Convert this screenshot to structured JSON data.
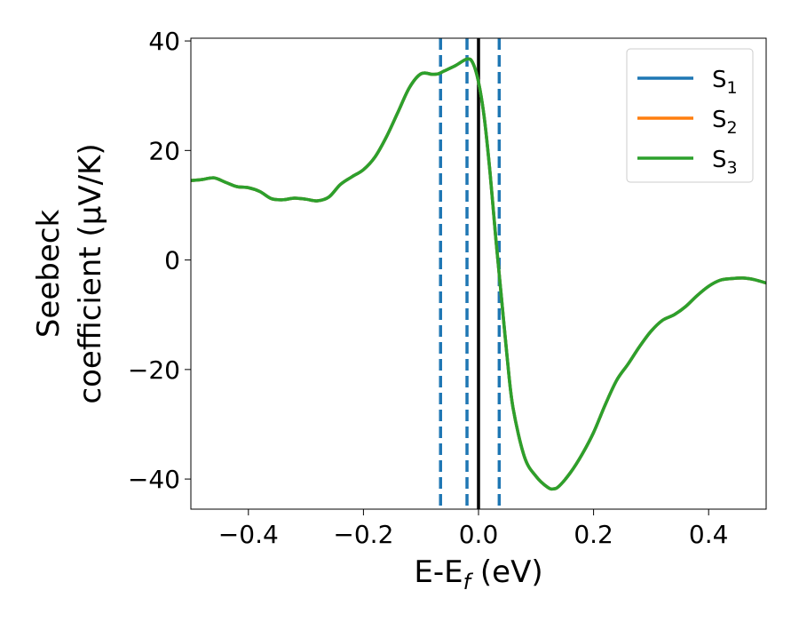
{
  "chart_data": {
    "type": "line",
    "title": "",
    "xlabel": {
      "main": "E-E",
      "sub": "f",
      "unit": " (eV)"
    },
    "ylabel": {
      "line1": "Seebeck",
      "line2": "coefficient  (μV/K)"
    },
    "xlim": [
      -0.5,
      0.5
    ],
    "ylim": [
      -45.5,
      40.5
    ],
    "xticks": [
      -0.4,
      -0.2,
      0.0,
      0.2,
      0.4
    ],
    "xtick_labels": [
      "−0.4",
      "−0.2",
      "0.0",
      "0.2",
      "0.4"
    ],
    "yticks": [
      -40,
      -20,
      0,
      20,
      40
    ],
    "ytick_labels": [
      "−40",
      "−20",
      "0",
      "20",
      "40"
    ],
    "grid": false,
    "legend": {
      "placement": "top-right",
      "entries": [
        {
          "label": "S",
          "sub": "1",
          "color": "#1f77b4"
        },
        {
          "label": "S",
          "sub": "2",
          "color": "#ff7f0e"
        },
        {
          "label": "S",
          "sub": "3",
          "color": "#2ca02c"
        }
      ]
    },
    "series": [
      {
        "name": "S1",
        "color": "#1f77b4",
        "x": [
          -0.5,
          -0.48,
          -0.46,
          -0.44,
          -0.42,
          -0.4,
          -0.38,
          -0.36,
          -0.34,
          -0.32,
          -0.3,
          -0.28,
          -0.26,
          -0.24,
          -0.22,
          -0.2,
          -0.18,
          -0.16,
          -0.14,
          -0.12,
          -0.1,
          -0.08,
          -0.07,
          -0.06,
          -0.04,
          -0.02,
          -0.01,
          0.0,
          0.01,
          0.02,
          0.03,
          0.04,
          0.05,
          0.06,
          0.08,
          0.1,
          0.12,
          0.13,
          0.14,
          0.16,
          0.18,
          0.2,
          0.22,
          0.24,
          0.26,
          0.28,
          0.3,
          0.32,
          0.34,
          0.36,
          0.38,
          0.4,
          0.42,
          0.44,
          0.46,
          0.48,
          0.5
        ],
        "y": [
          14.5,
          14.7,
          15.0,
          14.2,
          13.4,
          13.2,
          12.5,
          11.2,
          11.0,
          11.3,
          11.1,
          10.8,
          11.5,
          13.8,
          15.2,
          16.5,
          18.8,
          22.5,
          27.0,
          31.5,
          34.0,
          33.9,
          34.0,
          34.5,
          35.5,
          36.7,
          36.0,
          32.5,
          26.0,
          16.0,
          4.0,
          -7.0,
          -18.0,
          -27.0,
          -36.0,
          -39.5,
          -41.5,
          -41.8,
          -41.3,
          -38.8,
          -35.5,
          -31.5,
          -26.5,
          -22.0,
          -19.0,
          -15.8,
          -13.0,
          -11.0,
          -10.0,
          -8.5,
          -6.5,
          -4.8,
          -3.7,
          -3.4,
          -3.3,
          -3.6,
          -4.2
        ]
      },
      {
        "name": "S2",
        "color": "#ff7f0e",
        "x": [
          -0.5,
          -0.48,
          -0.46,
          -0.44,
          -0.42,
          -0.4,
          -0.38,
          -0.36,
          -0.34,
          -0.32,
          -0.3,
          -0.28,
          -0.26,
          -0.24,
          -0.22,
          -0.2,
          -0.18,
          -0.16,
          -0.14,
          -0.12,
          -0.1,
          -0.08,
          -0.07,
          -0.06,
          -0.04,
          -0.02,
          -0.01,
          0.0,
          0.01,
          0.02,
          0.03,
          0.04,
          0.05,
          0.06,
          0.08,
          0.1,
          0.12,
          0.13,
          0.14,
          0.16,
          0.18,
          0.2,
          0.22,
          0.24,
          0.26,
          0.28,
          0.3,
          0.32,
          0.34,
          0.36,
          0.38,
          0.4,
          0.42,
          0.44,
          0.46,
          0.48,
          0.5
        ],
        "y": [
          14.5,
          14.7,
          15.0,
          14.2,
          13.4,
          13.2,
          12.5,
          11.2,
          11.0,
          11.3,
          11.1,
          10.8,
          11.5,
          13.8,
          15.2,
          16.5,
          18.8,
          22.5,
          27.0,
          31.5,
          34.0,
          33.9,
          34.0,
          34.5,
          35.5,
          36.7,
          36.0,
          32.5,
          26.0,
          16.0,
          4.0,
          -7.0,
          -18.0,
          -27.0,
          -36.0,
          -39.5,
          -41.5,
          -41.8,
          -41.3,
          -38.8,
          -35.5,
          -31.5,
          -26.5,
          -22.0,
          -19.0,
          -15.8,
          -13.0,
          -11.0,
          -10.0,
          -8.5,
          -6.5,
          -4.8,
          -3.7,
          -3.4,
          -3.3,
          -3.6,
          -4.2
        ]
      },
      {
        "name": "S3",
        "color": "#2ca02c",
        "x": [
          -0.5,
          -0.48,
          -0.46,
          -0.44,
          -0.42,
          -0.4,
          -0.38,
          -0.36,
          -0.34,
          -0.32,
          -0.3,
          -0.28,
          -0.26,
          -0.24,
          -0.22,
          -0.2,
          -0.18,
          -0.16,
          -0.14,
          -0.12,
          -0.1,
          -0.08,
          -0.07,
          -0.06,
          -0.04,
          -0.02,
          -0.01,
          0.0,
          0.01,
          0.02,
          0.03,
          0.04,
          0.05,
          0.06,
          0.08,
          0.1,
          0.12,
          0.13,
          0.14,
          0.16,
          0.18,
          0.2,
          0.22,
          0.24,
          0.26,
          0.28,
          0.3,
          0.32,
          0.34,
          0.36,
          0.38,
          0.4,
          0.42,
          0.44,
          0.46,
          0.48,
          0.5
        ],
        "y": [
          14.5,
          14.7,
          15.0,
          14.2,
          13.4,
          13.2,
          12.5,
          11.2,
          11.0,
          11.3,
          11.1,
          10.8,
          11.5,
          13.8,
          15.2,
          16.5,
          18.8,
          22.5,
          27.0,
          31.5,
          34.0,
          33.9,
          34.0,
          34.5,
          35.5,
          36.7,
          36.0,
          32.5,
          26.0,
          16.0,
          4.0,
          -7.0,
          -18.0,
          -27.0,
          -36.0,
          -39.5,
          -41.5,
          -41.8,
          -41.3,
          -38.8,
          -35.5,
          -31.5,
          -26.5,
          -22.0,
          -19.0,
          -15.8,
          -13.0,
          -11.0,
          -10.0,
          -8.5,
          -6.5,
          -4.8,
          -3.7,
          -3.4,
          -3.3,
          -3.6,
          -4.2
        ]
      }
    ],
    "vlines": [
      {
        "x": -0.066,
        "style": "dashed",
        "color": "#1f77b4"
      },
      {
        "x": -0.02,
        "style": "dashed",
        "color": "#1f77b4"
      },
      {
        "x": 0.0,
        "style": "solid",
        "color": "#000000"
      },
      {
        "x": 0.036,
        "style": "dashed",
        "color": "#1f77b4"
      }
    ]
  }
}
